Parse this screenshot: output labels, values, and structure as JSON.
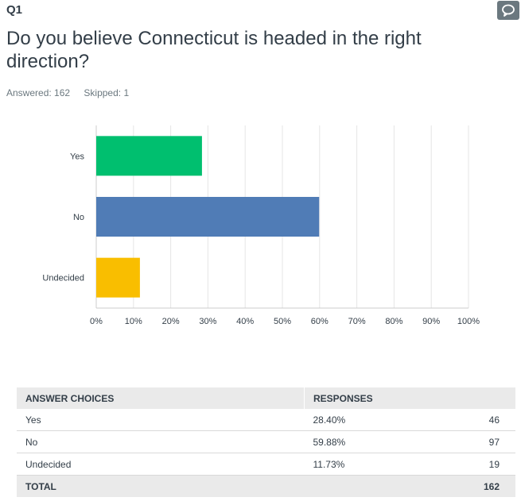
{
  "question": {
    "number": "Q1",
    "title": "Do you believe Connecticut is headed in the right direction?",
    "answered": "Answered: 162",
    "skipped": "Skipped: 1"
  },
  "chart_data": {
    "type": "bar",
    "orientation": "horizontal",
    "categories": [
      "Yes",
      "No",
      "Undecided"
    ],
    "values": [
      28.4,
      59.88,
      11.73
    ],
    "colors": [
      "#00bf6f",
      "#507cb6",
      "#f9be00"
    ],
    "xlim": [
      0,
      100
    ],
    "xticks": [
      "0%",
      "10%",
      "20%",
      "30%",
      "40%",
      "50%",
      "60%",
      "70%",
      "80%",
      "90%",
      "100%"
    ],
    "grid": true
  },
  "table": {
    "headers": [
      "ANSWER CHOICES",
      "RESPONSES"
    ],
    "rows": [
      {
        "choice": "Yes",
        "percent": "28.40%",
        "count": "46"
      },
      {
        "choice": "No",
        "percent": "59.88%",
        "count": "97"
      },
      {
        "choice": "Undecided",
        "percent": "11.73%",
        "count": "19"
      }
    ],
    "total_label": "TOTAL",
    "total_count": "162"
  },
  "icons": {
    "comment": "comment-icon"
  }
}
